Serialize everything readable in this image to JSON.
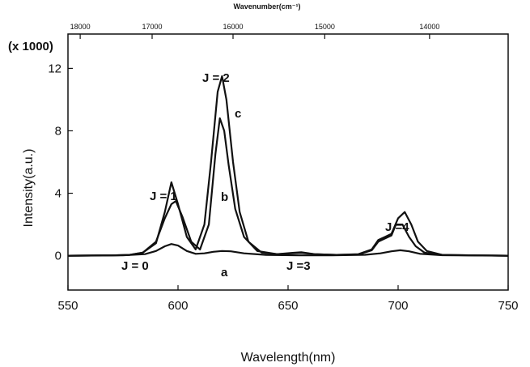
{
  "chart_data": {
    "type": "line",
    "xlabel": "Wavelength(nm)",
    "ylabel": "Intensity(a.u.)",
    "y_multiplier": "(x 1000)",
    "top_axis_label": "Wavenumber(cm⁻¹)",
    "xlim": [
      550,
      750
    ],
    "ylim": [
      -2.2,
      14.2
    ],
    "x_ticks": [
      550,
      600,
      650,
      700,
      750
    ],
    "y_ticks": [
      0,
      4,
      8,
      12
    ],
    "top_ticks": [
      18000,
      17000,
      16000,
      15000,
      14000
    ],
    "grid": false,
    "annotations": [
      "J = 0",
      "J = 1",
      "J = 2",
      "J =3",
      "J =4",
      "a",
      "b",
      "c"
    ],
    "series": [
      {
        "name": "c",
        "x": [
          550,
          570,
          578,
          584,
          590,
          594,
          597,
          600,
          604,
          608,
          612,
          615,
          618,
          620,
          622,
          625,
          628,
          632,
          638,
          645,
          652,
          656,
          662,
          672,
          682,
          688,
          691,
          694,
          697,
          700,
          703,
          706,
          709,
          713,
          720,
          735,
          750
        ],
        "values": [
          0,
          0.02,
          0.05,
          0.2,
          0.8,
          2.8,
          4.7,
          3.3,
          1.2,
          0.4,
          2.0,
          6.0,
          10.5,
          11.5,
          10.0,
          6.0,
          2.8,
          0.9,
          0.2,
          0.1,
          0.18,
          0.22,
          0.1,
          0.05,
          0.1,
          0.4,
          1.0,
          1.2,
          1.4,
          2.4,
          2.8,
          2.0,
          0.9,
          0.3,
          0.05,
          0.02,
          0.0
        ]
      },
      {
        "name": "b",
        "x": [
          550,
          570,
          578,
          584,
          590,
          594,
          597,
          599,
          602,
          606,
          610,
          614,
          617,
          619,
          621,
          623,
          626,
          630,
          636,
          645,
          652,
          656,
          662,
          672,
          682,
          688,
          691,
          694,
          697,
          699,
          702,
          705,
          708,
          712,
          720,
          735,
          750
        ],
        "values": [
          0,
          0.02,
          0.05,
          0.2,
          0.9,
          2.4,
          3.3,
          3.5,
          2.5,
          0.9,
          0.4,
          2.0,
          6.5,
          8.8,
          8.0,
          5.8,
          3.0,
          1.2,
          0.3,
          0.1,
          0.15,
          0.18,
          0.1,
          0.05,
          0.08,
          0.35,
          0.9,
          1.1,
          1.3,
          2.0,
          2.0,
          1.2,
          0.6,
          0.2,
          0.05,
          0.02,
          0.0
        ]
      },
      {
        "name": "a",
        "x": [
          550,
          575,
          585,
          590,
          594,
          597,
          600,
          604,
          608,
          612,
          616,
          620,
          624,
          630,
          640,
          655,
          670,
          685,
          692,
          697,
          701,
          705,
          710,
          720,
          750
        ],
        "values": [
          0,
          0.02,
          0.1,
          0.3,
          0.6,
          0.75,
          0.65,
          0.3,
          0.12,
          0.15,
          0.25,
          0.3,
          0.28,
          0.15,
          0.05,
          0.02,
          0.02,
          0.06,
          0.15,
          0.28,
          0.35,
          0.28,
          0.12,
          0.03,
          0.0
        ]
      }
    ]
  }
}
